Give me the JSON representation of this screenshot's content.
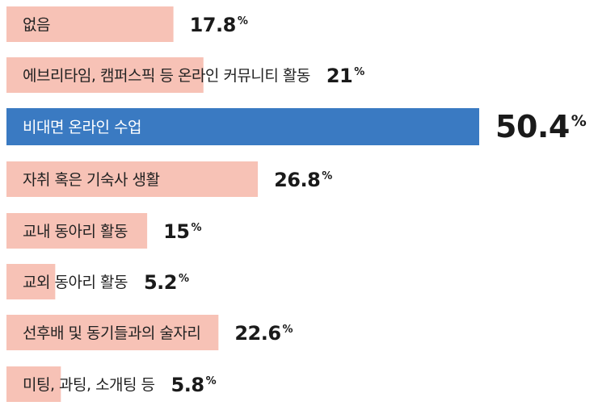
{
  "chart_data": {
    "type": "bar",
    "orientation": "horizontal",
    "unit": "%",
    "xlim": [
      0,
      50.4
    ],
    "grid": false,
    "categories": [
      "없음",
      "에브리타임, 캠퍼스픽 등 온라인 커뮤니티 활동",
      "비대면 온라인 수업",
      "자취 혹은 기숙사 생활",
      "교내 동아리 활동",
      "교외 동아리 활동",
      "선후배 및 동기들과의 술자리",
      "미팅, 과팅, 소개팅 등"
    ],
    "values": [
      17.8,
      21,
      50.4,
      26.8,
      15,
      5.2,
      22.6,
      5.8
    ],
    "value_labels": [
      "17.8",
      "21",
      "50.4",
      "26.8",
      "15",
      "5.2",
      "22.6",
      "5.8"
    ],
    "highlight_index": 2
  },
  "colors": {
    "bar": "#f7c2b6",
    "highlight": "#3a7ac2",
    "label": "#222222",
    "highlight_label": "#ffffff",
    "value": "#1a1a1a"
  }
}
